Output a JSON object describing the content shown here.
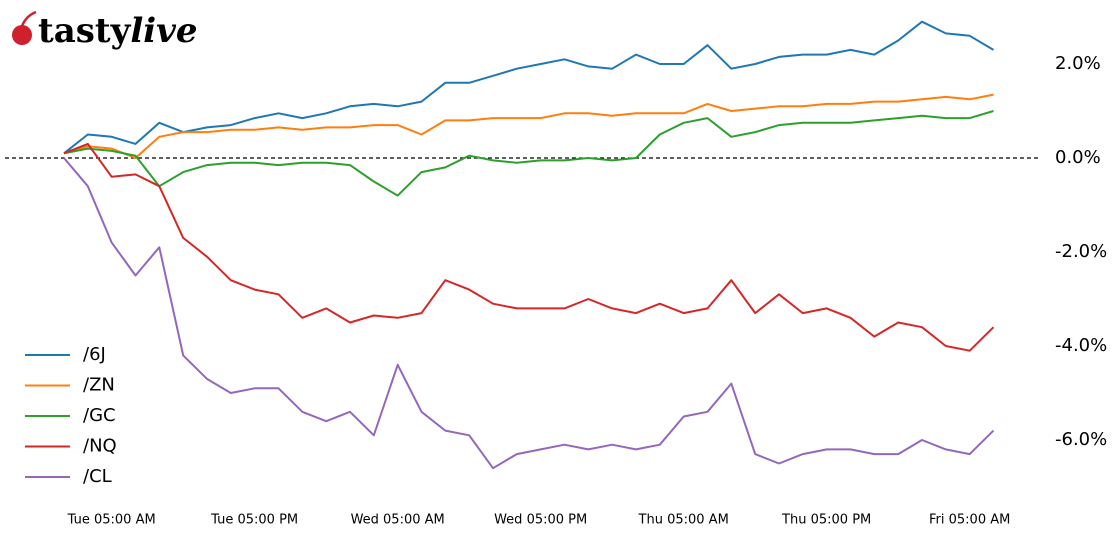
{
  "brand": {
    "bold": "tasty",
    "italic": "live"
  },
  "chart_data": {
    "type": "line",
    "categories": [
      null,
      null,
      "Tue 05:00 AM",
      null,
      null,
      null,
      null,
      null,
      "Tue 05:00 PM",
      null,
      null,
      null,
      null,
      null,
      "Wed 05:00 AM",
      null,
      null,
      null,
      null,
      null,
      "Wed 05:00 PM",
      null,
      null,
      null,
      null,
      null,
      "Thu 05:00 AM",
      null,
      null,
      null,
      null,
      null,
      "Thu 05:00 PM",
      null,
      null,
      null,
      null,
      null,
      "Fri 05:00 AM",
      null
    ],
    "series": [
      {
        "name": "/6J",
        "color": "#1f77b4",
        "values": [
          0.1,
          0.5,
          0.45,
          0.3,
          0.75,
          0.55,
          0.65,
          0.7,
          0.85,
          0.95,
          0.85,
          0.95,
          1.1,
          1.15,
          1.1,
          1.2,
          1.6,
          1.6,
          1.75,
          1.9,
          2.0,
          2.1,
          1.95,
          1.9,
          2.2,
          2.0,
          2.0,
          2.4,
          1.9,
          2.0,
          2.15,
          2.2,
          2.2,
          2.3,
          2.2,
          2.5,
          2.9,
          2.65,
          2.6,
          2.3
        ]
      },
      {
        "name": "/ZN",
        "color": "#ff7f0e",
        "values": [
          0.1,
          0.25,
          0.2,
          0.0,
          0.45,
          0.55,
          0.55,
          0.6,
          0.6,
          0.65,
          0.6,
          0.65,
          0.65,
          0.7,
          0.7,
          0.5,
          0.8,
          0.8,
          0.85,
          0.85,
          0.85,
          0.95,
          0.95,
          0.9,
          0.95,
          0.95,
          0.95,
          1.15,
          1.0,
          1.05,
          1.1,
          1.1,
          1.15,
          1.15,
          1.2,
          1.2,
          1.25,
          1.3,
          1.25,
          1.35
        ]
      },
      {
        "name": "/GC",
        "color": "#2ca02c",
        "values": [
          0.1,
          0.2,
          0.15,
          0.05,
          -0.6,
          -0.3,
          -0.15,
          -0.1,
          -0.1,
          -0.15,
          -0.1,
          -0.1,
          -0.15,
          -0.5,
          -0.8,
          -0.3,
          -0.2,
          0.05,
          -0.05,
          -0.1,
          -0.05,
          -0.05,
          0.0,
          -0.05,
          0.0,
          0.5,
          0.75,
          0.85,
          0.45,
          0.55,
          0.7,
          0.75,
          0.75,
          0.75,
          0.8,
          0.85,
          0.9,
          0.85,
          0.85,
          1.0
        ]
      },
      {
        "name": "/NQ",
        "color": "#d62728",
        "values": [
          0.1,
          0.3,
          -0.4,
          -0.35,
          -0.6,
          -1.7,
          -2.1,
          -2.6,
          -2.8,
          -2.9,
          -3.4,
          -3.2,
          -3.5,
          -3.35,
          -3.4,
          -3.3,
          -2.6,
          -2.8,
          -3.1,
          -3.2,
          -3.2,
          -3.2,
          -3.0,
          -3.2,
          -3.3,
          -3.1,
          -3.3,
          -3.2,
          -2.6,
          -3.3,
          -2.9,
          -3.3,
          -3.2,
          -3.4,
          -3.8,
          -3.5,
          -3.6,
          -4.0,
          -4.1,
          -3.6
        ]
      },
      {
        "name": "/CL",
        "color": "#9467bd",
        "values": [
          0.0,
          -0.6,
          -1.8,
          -2.5,
          -1.9,
          -4.2,
          -4.7,
          -5.0,
          -4.9,
          -4.9,
          -5.4,
          -5.6,
          -5.4,
          -5.9,
          -4.4,
          -5.4,
          -5.8,
          -5.9,
          -6.6,
          -6.3,
          -6.2,
          -6.1,
          -6.2,
          -6.1,
          -6.2,
          -6.1,
          -5.5,
          -5.4,
          -4.8,
          -6.3,
          -6.5,
          -6.3,
          -6.2,
          -6.2,
          -6.3,
          -6.3,
          -6.0,
          -6.2,
          -6.3,
          -5.8
        ]
      }
    ],
    "ylim": [
      -7,
      3.2
    ],
    "yticks": [
      {
        "value": 2,
        "label": "2.0%"
      },
      {
        "value": 0,
        "label": "0.0%"
      },
      {
        "value": -2,
        "label": "-2.0%"
      },
      {
        "value": -4,
        "label": "-4.0%"
      },
      {
        "value": -6,
        "label": "-6.0%"
      }
    ],
    "zero_line": true,
    "legend": "lower left",
    "grid": false
  }
}
